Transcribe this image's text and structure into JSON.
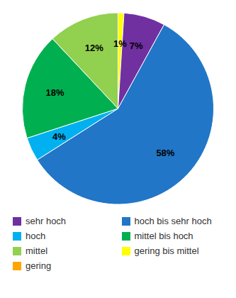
{
  "chart_data": {
    "type": "pie",
    "categories": [
      "gering bis mittel",
      "sehr hoch",
      "hoch bis sehr hoch",
      "hoch",
      "mittel bis hoch",
      "mittel"
    ],
    "values": [
      1,
      7,
      58,
      4,
      18,
      12
    ],
    "value_labels": [
      "1%",
      "7%",
      "58%",
      "4%",
      "18%",
      "12%"
    ],
    "colors": [
      "#FFFF00",
      "#7030A0",
      "#2176C7",
      "#00B0F0",
      "#00B050",
      "#92D050"
    ],
    "data_labels": true,
    "legend": "bottom",
    "legend_entries": [
      {
        "name": "sehr hoch",
        "color": "#7030A0"
      },
      {
        "name": "hoch bis sehr hoch",
        "color": "#2176C7"
      },
      {
        "name": "hoch",
        "color": "#00B0F0"
      },
      {
        "name": "mittel bis hoch",
        "color": "#00B050"
      },
      {
        "name": "mittel",
        "color": "#92D050"
      },
      {
        "name": "gering bis mittel",
        "color": "#FFFF00"
      },
      {
        "name": "gering",
        "color": "#FFA500"
      }
    ]
  }
}
